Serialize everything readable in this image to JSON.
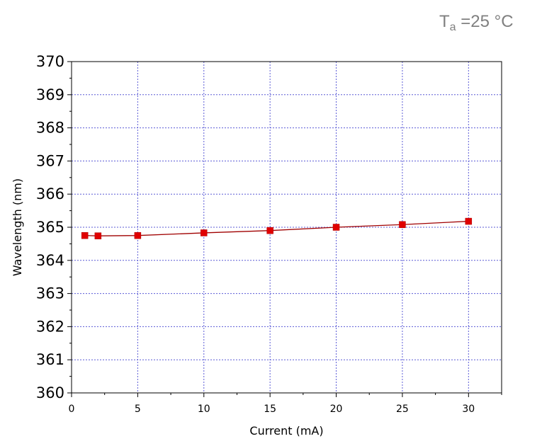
{
  "annotation": {
    "main": "T",
    "subscript": "a",
    "rest": " =25 °C"
  },
  "chart_data": {
    "type": "line",
    "title": "",
    "xlabel": "Current (mA)",
    "ylabel": "Wavelength (nm)",
    "xlim": [
      0,
      32.5
    ],
    "ylim": [
      360,
      370
    ],
    "xticks": [
      0,
      5,
      10,
      15,
      20,
      25,
      30
    ],
    "yticks": [
      360,
      361,
      362,
      363,
      364,
      365,
      366,
      367,
      368,
      369,
      370
    ],
    "grid": true,
    "series": [
      {
        "color": "#e00000",
        "line_color": "#a00000",
        "marker": "square",
        "x": [
          1,
          2,
          5,
          10,
          15,
          20,
          25,
          30
        ],
        "y": [
          364.75,
          364.74,
          364.75,
          364.83,
          364.9,
          365.0,
          365.08,
          365.18
        ]
      }
    ]
  }
}
